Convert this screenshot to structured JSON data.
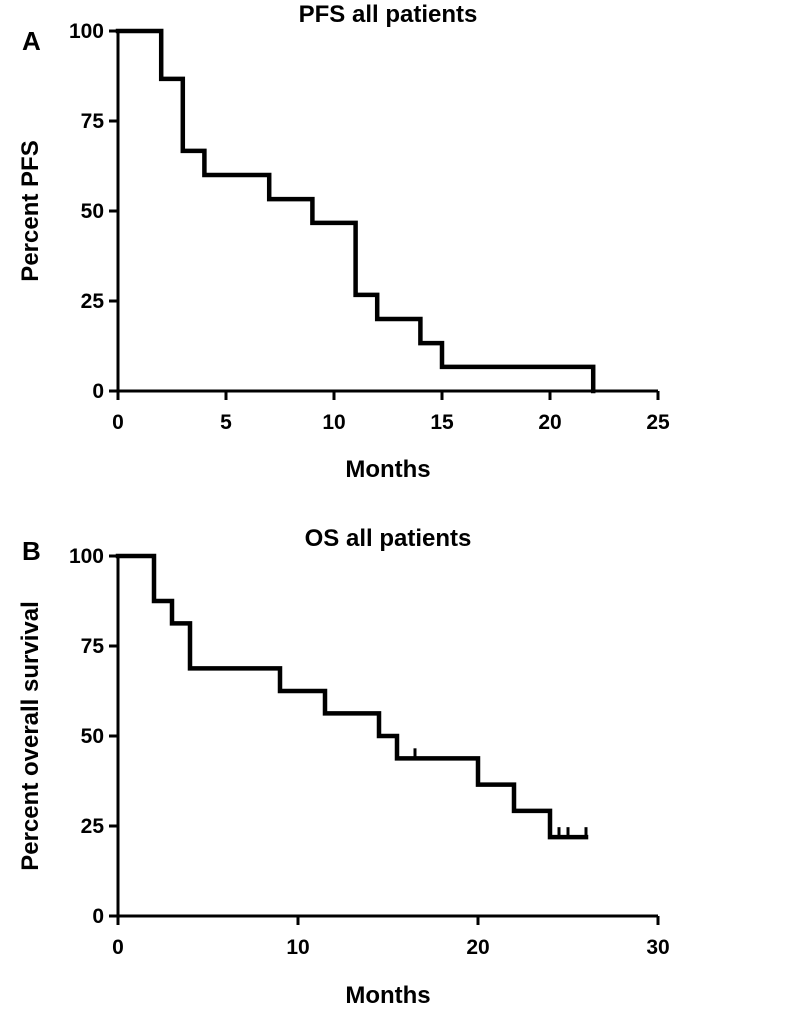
{
  "chart_data": [
    {
      "type": "line",
      "subtype": "kaplan-meier-step",
      "panel_label": "A",
      "title": "PFS all patients",
      "xlabel": "Months",
      "ylabel": "Percent PFS",
      "xlim": [
        0,
        25
      ],
      "ylim": [
        0,
        100
      ],
      "xticks": [
        0,
        5,
        10,
        15,
        20,
        25
      ],
      "yticks": [
        0,
        25,
        50,
        75,
        100
      ],
      "series": [
        {
          "name": "PFS",
          "steps": [
            {
              "x": 0,
              "y": 100
            },
            {
              "x": 2,
              "y": 86.7
            },
            {
              "x": 3,
              "y": 66.7
            },
            {
              "x": 4,
              "y": 60
            },
            {
              "x": 7,
              "y": 53.3
            },
            {
              "x": 9,
              "y": 46.7
            },
            {
              "x": 11,
              "y": 26.7
            },
            {
              "x": 12,
              "y": 20
            },
            {
              "x": 14,
              "y": 13.3
            },
            {
              "x": 15,
              "y": 6.7
            },
            {
              "x": 22,
              "y": 0
            }
          ],
          "end_x": 22,
          "censored": []
        }
      ]
    },
    {
      "type": "line",
      "subtype": "kaplan-meier-step",
      "panel_label": "B",
      "title": "OS all patients",
      "xlabel": "Months",
      "ylabel": "Percent overall survival",
      "xlim": [
        0,
        30
      ],
      "ylim": [
        0,
        100
      ],
      "xticks": [
        0,
        10,
        20,
        30
      ],
      "yticks": [
        0,
        25,
        50,
        75,
        100
      ],
      "series": [
        {
          "name": "OS",
          "steps": [
            {
              "x": 0,
              "y": 100
            },
            {
              "x": 2,
              "y": 87.5
            },
            {
              "x": 3,
              "y": 81.3
            },
            {
              "x": 4,
              "y": 68.8
            },
            {
              "x": 9,
              "y": 62.5
            },
            {
              "x": 11.5,
              "y": 56.3
            },
            {
              "x": 14.5,
              "y": 50
            },
            {
              "x": 15.5,
              "y": 43.8
            },
            {
              "x": 20,
              "y": 36.5
            },
            {
              "x": 22,
              "y": 29.2
            },
            {
              "x": 24,
              "y": 21.9
            }
          ],
          "end_x": 26,
          "censored": [
            16.5,
            24.5,
            25,
            26
          ]
        }
      ]
    }
  ]
}
